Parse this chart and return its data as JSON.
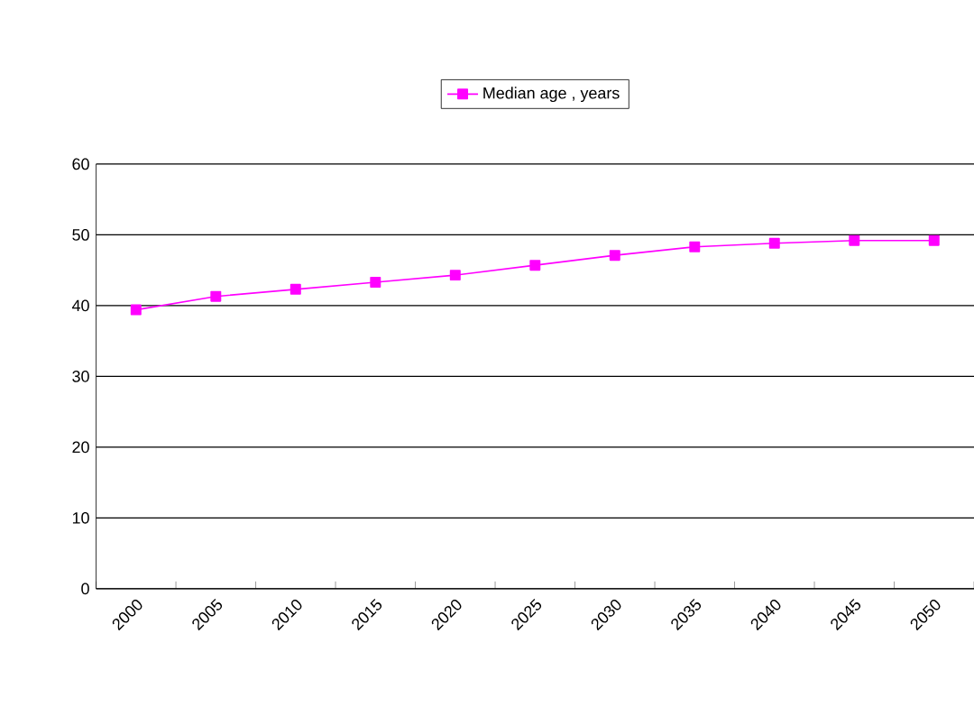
{
  "chart_data": {
    "type": "line",
    "categories": [
      "2000",
      "2005",
      "2010",
      "2015",
      "2020",
      "2025",
      "2030",
      "2035",
      "2040",
      "2045",
      "2050"
    ],
    "series": [
      {
        "name": "Median age , years",
        "color": "#ff00ff",
        "values": [
          39.4,
          41.3,
          42.3,
          43.3,
          44.3,
          45.7,
          47.1,
          48.3,
          48.8,
          49.2,
          49.2
        ]
      }
    ],
    "ylim": [
      0,
      60
    ],
    "yticks": [
      0,
      10,
      20,
      30,
      40,
      50,
      60
    ],
    "grid": "y",
    "legend": "top",
    "marker": "square",
    "line_style": "solid"
  }
}
